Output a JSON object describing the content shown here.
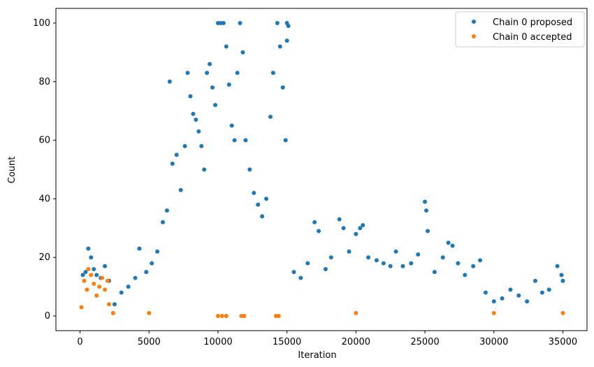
{
  "chart_data": {
    "type": "scatter",
    "xlabel": "Iteration",
    "ylabel": "Count",
    "xlim": [
      -1750,
      36750
    ],
    "ylim": [
      -5,
      105
    ],
    "xticks": [
      0,
      5000,
      10000,
      15000,
      20000,
      25000,
      30000,
      35000
    ],
    "yticks": [
      0,
      20,
      40,
      60,
      80,
      100
    ],
    "legend_position": "top-right",
    "grid": false,
    "series": [
      {
        "name": "Chain 0 proposed",
        "color": "#1f77b4",
        "points": [
          [
            200,
            14
          ],
          [
            400,
            15
          ],
          [
            600,
            23
          ],
          [
            800,
            20
          ],
          [
            1000,
            16
          ],
          [
            1200,
            14
          ],
          [
            1500,
            13
          ],
          [
            1800,
            17
          ],
          [
            2100,
            12
          ],
          [
            2500,
            4
          ],
          [
            3000,
            8
          ],
          [
            3500,
            10
          ],
          [
            4000,
            13
          ],
          [
            4300,
            23
          ],
          [
            4800,
            15
          ],
          [
            5200,
            18
          ],
          [
            5600,
            22
          ],
          [
            6000,
            32
          ],
          [
            6300,
            36
          ],
          [
            6500,
            80
          ],
          [
            6700,
            52
          ],
          [
            7000,
            55
          ],
          [
            7300,
            43
          ],
          [
            7600,
            58
          ],
          [
            7800,
            83
          ],
          [
            8000,
            75
          ],
          [
            8200,
            69
          ],
          [
            8400,
            67
          ],
          [
            8600,
            63
          ],
          [
            8800,
            58
          ],
          [
            9000,
            50
          ],
          [
            9200,
            83
          ],
          [
            9400,
            86
          ],
          [
            9600,
            78
          ],
          [
            9800,
            72
          ],
          [
            10000,
            100
          ],
          [
            10200,
            100
          ],
          [
            10400,
            100
          ],
          [
            10600,
            92
          ],
          [
            10800,
            79
          ],
          [
            11000,
            65
          ],
          [
            11200,
            60
          ],
          [
            11400,
            83
          ],
          [
            11600,
            100
          ],
          [
            11800,
            90
          ],
          [
            12000,
            60
          ],
          [
            12300,
            50
          ],
          [
            12600,
            42
          ],
          [
            12900,
            38
          ],
          [
            13200,
            34
          ],
          [
            13500,
            40
          ],
          [
            13800,
            68
          ],
          [
            14000,
            83
          ],
          [
            14300,
            100
          ],
          [
            14500,
            92
          ],
          [
            14700,
            78
          ],
          [
            14900,
            60
          ],
          [
            15000,
            100
          ],
          [
            15100,
            99
          ],
          [
            15000,
            94
          ],
          [
            15500,
            15
          ],
          [
            16000,
            13
          ],
          [
            16500,
            18
          ],
          [
            17000,
            32
          ],
          [
            17300,
            29
          ],
          [
            17800,
            16
          ],
          [
            18200,
            20
          ],
          [
            18800,
            33
          ],
          [
            19100,
            30
          ],
          [
            19500,
            22
          ],
          [
            20000,
            28
          ],
          [
            20300,
            30
          ],
          [
            20500,
            31
          ],
          [
            20900,
            20
          ],
          [
            21500,
            19
          ],
          [
            22000,
            18
          ],
          [
            22500,
            17
          ],
          [
            22900,
            22
          ],
          [
            23400,
            17
          ],
          [
            24000,
            18
          ],
          [
            24500,
            21
          ],
          [
            25000,
            39
          ],
          [
            25100,
            36
          ],
          [
            25200,
            29
          ],
          [
            25700,
            15
          ],
          [
            26300,
            20
          ],
          [
            26700,
            25
          ],
          [
            27000,
            24
          ],
          [
            27400,
            18
          ],
          [
            27900,
            14
          ],
          [
            28500,
            17
          ],
          [
            29000,
            19
          ],
          [
            29400,
            8
          ],
          [
            30000,
            5
          ],
          [
            30600,
            6
          ],
          [
            31200,
            9
          ],
          [
            31800,
            7
          ],
          [
            32400,
            5
          ],
          [
            33000,
            12
          ],
          [
            33500,
            8
          ],
          [
            34000,
            9
          ],
          [
            34600,
            17
          ],
          [
            34900,
            14
          ],
          [
            35000,
            12
          ]
        ]
      },
      {
        "name": "Chain 0 accepted",
        "color": "#ff7f0e",
        "points": [
          [
            100,
            3
          ],
          [
            300,
            12
          ],
          [
            500,
            9
          ],
          [
            600,
            16
          ],
          [
            800,
            14
          ],
          [
            1000,
            11
          ],
          [
            1200,
            7
          ],
          [
            1400,
            10
          ],
          [
            1600,
            13
          ],
          [
            1800,
            9
          ],
          [
            2000,
            12
          ],
          [
            2100,
            4
          ],
          [
            2400,
            1
          ],
          [
            5000,
            1
          ],
          [
            10000,
            0
          ],
          [
            10300,
            0
          ],
          [
            10600,
            0
          ],
          [
            11700,
            0
          ],
          [
            11900,
            0
          ],
          [
            14200,
            0
          ],
          [
            14400,
            0
          ],
          [
            20000,
            1
          ],
          [
            30000,
            1
          ],
          [
            35000,
            1
          ]
        ]
      }
    ]
  }
}
